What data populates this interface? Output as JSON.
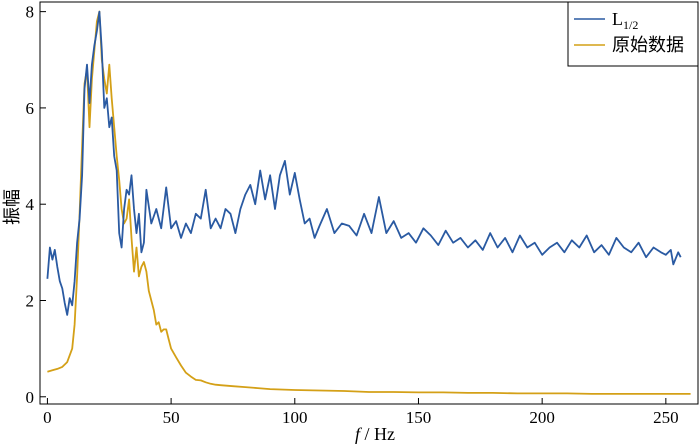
{
  "chart_data": {
    "type": "line",
    "xlabel": {
      "italic": "f",
      "rest": " / Hz"
    },
    "ylabel": "振幅",
    "xlim": [
      -3,
      263
    ],
    "ylim": [
      -0.15,
      8.2
    ],
    "xticks": [
      0,
      50,
      100,
      150,
      200,
      250
    ],
    "yticks": [
      0,
      2,
      4,
      6,
      8
    ],
    "grid": false,
    "legend_position": "top-right",
    "series": [
      {
        "name": "L1/2",
        "name_main": "L",
        "name_sub": "1/2",
        "color": "#2a5aa2",
        "x": [
          0,
          1,
          2,
          3,
          4,
          5,
          6,
          7,
          8,
          9,
          10,
          11,
          12,
          13,
          14,
          15,
          16,
          17,
          18,
          19,
          20,
          21,
          22,
          23,
          24,
          25,
          26,
          27,
          28,
          29,
          30,
          31,
          32,
          33,
          34,
          35,
          36,
          37,
          38,
          39,
          40,
          42,
          44,
          46,
          48,
          50,
          52,
          54,
          56,
          58,
          60,
          62,
          64,
          66,
          68,
          70,
          72,
          74,
          76,
          78,
          80,
          82,
          84,
          86,
          88,
          90,
          92,
          94,
          96,
          98,
          100,
          102,
          104,
          106,
          108,
          110,
          113,
          116,
          119,
          122,
          125,
          128,
          131,
          134,
          137,
          140,
          143,
          146,
          149,
          152,
          155,
          158,
          161,
          164,
          167,
          170,
          173,
          176,
          179,
          182,
          185,
          188,
          191,
          194,
          197,
          200,
          203,
          206,
          209,
          212,
          215,
          218,
          221,
          224,
          227,
          230,
          233,
          236,
          239,
          242,
          245,
          248,
          250,
          252,
          253,
          255,
          256
        ],
        "values": [
          2.45,
          3.1,
          2.85,
          3.05,
          2.7,
          2.4,
          2.25,
          1.95,
          1.7,
          2.05,
          1.9,
          2.4,
          3.2,
          3.7,
          4.6,
          6.4,
          6.9,
          6.1,
          6.9,
          7.3,
          7.6,
          8.0,
          7.2,
          6.0,
          6.2,
          5.6,
          5.8,
          5.0,
          4.7,
          3.4,
          3.1,
          3.9,
          4.3,
          4.2,
          4.6,
          3.9,
          3.4,
          3.8,
          3.0,
          3.2,
          4.3,
          3.6,
          3.9,
          3.5,
          4.35,
          3.5,
          3.65,
          3.3,
          3.6,
          3.4,
          3.8,
          3.7,
          4.3,
          3.5,
          3.7,
          3.5,
          3.9,
          3.8,
          3.4,
          3.9,
          4.2,
          4.4,
          4.0,
          4.7,
          4.1,
          4.6,
          3.9,
          4.6,
          4.9,
          4.2,
          4.65,
          4.1,
          3.6,
          3.7,
          3.3,
          3.55,
          3.9,
          3.4,
          3.6,
          3.55,
          3.35,
          3.8,
          3.4,
          4.15,
          3.4,
          3.65,
          3.3,
          3.4,
          3.2,
          3.5,
          3.35,
          3.15,
          3.45,
          3.2,
          3.3,
          3.1,
          3.25,
          3.05,
          3.4,
          3.1,
          3.3,
          3.0,
          3.35,
          3.1,
          3.2,
          2.95,
          3.1,
          3.2,
          3.0,
          3.25,
          3.1,
          3.35,
          3.0,
          3.15,
          2.95,
          3.3,
          3.1,
          3.0,
          3.2,
          2.9,
          3.1,
          3.0,
          2.95,
          3.05,
          2.75,
          3.0,
          2.9
        ]
      },
      {
        "name": "原始数据",
        "color": "#d4a017",
        "x": [
          0,
          2,
          4,
          6,
          8,
          10,
          11,
          12,
          13,
          14,
          15,
          16,
          17,
          18,
          19,
          20,
          21,
          22,
          23,
          24,
          25,
          26,
          27,
          28,
          29,
          30,
          31,
          32,
          33,
          34,
          35,
          36,
          37,
          38,
          39,
          40,
          41,
          42,
          43,
          44,
          45,
          46,
          47,
          48,
          49,
          50,
          52,
          54,
          56,
          58,
          60,
          62,
          64,
          66,
          68,
          70,
          75,
          80,
          85,
          90,
          100,
          110,
          120,
          130,
          140,
          150,
          160,
          170,
          180,
          190,
          200,
          210,
          220,
          230,
          240,
          250,
          260
        ],
        "values": [
          0.52,
          0.55,
          0.58,
          0.62,
          0.72,
          1.0,
          1.5,
          2.5,
          3.8,
          5.2,
          6.5,
          6.8,
          5.6,
          6.6,
          7.2,
          7.8,
          8.0,
          7.0,
          6.6,
          6.3,
          6.9,
          6.2,
          5.6,
          5.0,
          4.5,
          3.9,
          3.6,
          3.7,
          4.1,
          3.3,
          2.6,
          3.1,
          2.5,
          2.7,
          2.8,
          2.6,
          2.2,
          2.0,
          1.8,
          1.5,
          1.55,
          1.35,
          1.4,
          1.4,
          1.2,
          1.0,
          0.82,
          0.65,
          0.5,
          0.42,
          0.35,
          0.34,
          0.3,
          0.27,
          0.25,
          0.24,
          0.22,
          0.2,
          0.18,
          0.16,
          0.14,
          0.13,
          0.12,
          0.1,
          0.1,
          0.09,
          0.09,
          0.08,
          0.08,
          0.07,
          0.07,
          0.07,
          0.06,
          0.06,
          0.06,
          0.06,
          0.06
        ]
      }
    ]
  }
}
